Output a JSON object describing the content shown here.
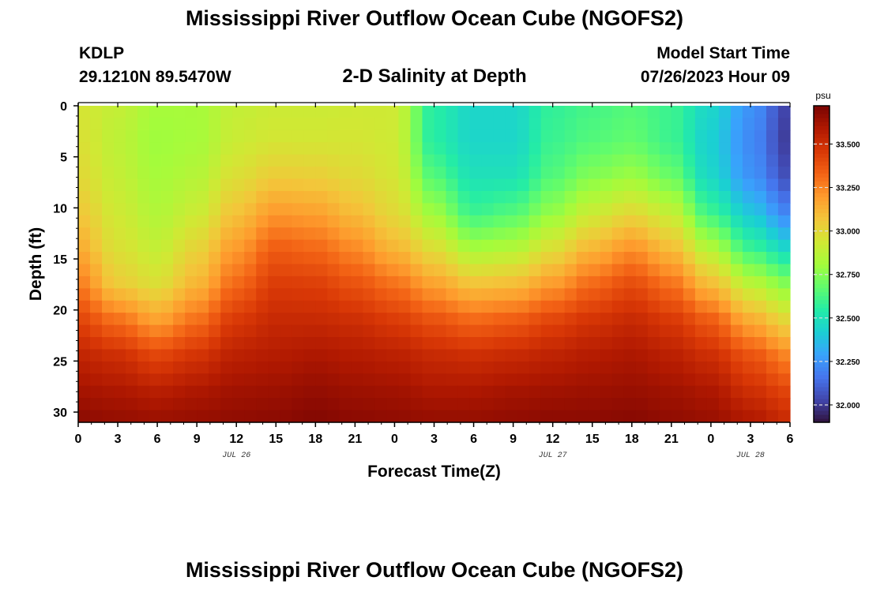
{
  "header": {
    "title": "Mississippi River Outflow Ocean Cube (NGOFS2)",
    "station_id": "KDLP",
    "station_coords": "29.1210N  89.5470W",
    "subtitle": "2-D Salinity at Depth",
    "model_start_label": "Model Start Time",
    "model_start_value": "07/26/2023 Hour 09"
  },
  "footer": {
    "title": "Mississippi River Outflow Ocean Cube (NGOFS2)"
  },
  "colors": {
    "background": "#ffffff",
    "text": "#000000",
    "colormap": [
      "#30123b",
      "#4145ab",
      "#4675ed",
      "#39a2fc",
      "#1bcfd4",
      "#24eca6",
      "#61fc6c",
      "#a4fc3b",
      "#d1e834",
      "#f3c63a",
      "#fe9b2d",
      "#f36315",
      "#d93806",
      "#b11901",
      "#7a0402"
    ]
  },
  "chart_data": {
    "type": "heatmap",
    "title": "2-D Salinity at Depth",
    "xlabel": "Forecast Time(Z)",
    "ylabel": "Depth (ft)",
    "x_ticks": [
      "0",
      "3",
      "6",
      "9",
      "12",
      "15",
      "18",
      "21",
      "0",
      "3",
      "6",
      "9",
      "12",
      "15",
      "18",
      "21",
      "0",
      "3",
      "6"
    ],
    "date_labels": [
      {
        "label": "JUL 26",
        "hours_from_start": 12
      },
      {
        "label": "JUL 27",
        "hours_from_start": 36
      },
      {
        "label": "JUL 28",
        "hours_from_start": 51
      }
    ],
    "xlim_hours": [
      0,
      54
    ],
    "y_ticks": [
      0,
      5,
      10,
      15,
      20,
      25,
      30
    ],
    "ylim": [
      0,
      31
    ],
    "colorbar": {
      "unit": "psu",
      "range": [
        31.9,
        33.72
      ],
      "ticks": [
        "33.500",
        "33.250",
        "33.000",
        "32.750",
        "32.500",
        "32.250",
        "32.000"
      ],
      "tick_values": [
        33.5,
        33.25,
        33.0,
        32.75,
        32.5,
        32.25,
        32.0
      ]
    },
    "profiles": [
      {
        "hour": 0,
        "values": [
          32.95,
          32.97,
          33.0,
          33.06,
          33.15,
          33.27,
          33.42,
          33.54,
          33.62,
          33.68
        ]
      },
      {
        "hour": 3,
        "values": [
          32.9,
          32.88,
          32.9,
          32.93,
          32.97,
          33.05,
          33.3,
          33.5,
          33.6,
          33.66
        ]
      },
      {
        "hour": 6,
        "values": [
          32.82,
          32.8,
          32.82,
          32.85,
          32.9,
          32.98,
          33.18,
          33.42,
          33.57,
          33.65
        ]
      },
      {
        "hour": 9,
        "values": [
          32.82,
          32.82,
          32.86,
          32.92,
          33.02,
          33.12,
          33.3,
          33.48,
          33.6,
          33.66
        ]
      },
      {
        "hour": 12,
        "values": [
          32.9,
          32.92,
          32.98,
          33.08,
          33.2,
          33.32,
          33.46,
          33.56,
          33.63,
          33.67
        ]
      },
      {
        "hour": 15,
        "values": [
          32.92,
          32.95,
          33.05,
          33.2,
          33.35,
          33.45,
          33.52,
          33.58,
          33.64,
          33.68
        ]
      },
      {
        "hour": 18,
        "values": [
          32.92,
          32.95,
          33.04,
          33.18,
          33.32,
          33.44,
          33.52,
          33.6,
          33.66,
          33.7
        ]
      },
      {
        "hour": 21,
        "values": [
          32.93,
          32.95,
          33.0,
          33.1,
          33.24,
          33.38,
          33.5,
          33.58,
          33.64,
          33.68
        ]
      },
      {
        "hour": 24,
        "values": [
          32.93,
          32.93,
          32.95,
          33.0,
          33.12,
          33.3,
          33.45,
          33.56,
          33.63,
          33.67
        ]
      },
      {
        "hour": 27,
        "values": [
          32.55,
          32.55,
          32.65,
          32.8,
          32.98,
          33.18,
          33.38,
          33.52,
          33.6,
          33.66
        ]
      },
      {
        "hour": 30,
        "values": [
          32.45,
          32.45,
          32.5,
          32.6,
          32.82,
          33.08,
          33.32,
          33.5,
          33.6,
          33.66
        ]
      },
      {
        "hour": 33,
        "values": [
          32.45,
          32.45,
          32.5,
          32.65,
          32.85,
          33.1,
          33.35,
          33.52,
          33.62,
          33.67
        ]
      },
      {
        "hour": 36,
        "values": [
          32.58,
          32.6,
          32.65,
          32.78,
          32.98,
          33.2,
          33.42,
          33.55,
          33.63,
          33.68
        ]
      },
      {
        "hour": 39,
        "values": [
          32.62,
          32.65,
          32.75,
          32.92,
          33.12,
          33.32,
          33.48,
          33.58,
          33.64,
          33.68
        ]
      },
      {
        "hour": 42,
        "values": [
          32.65,
          32.68,
          32.8,
          33.0,
          33.22,
          33.4,
          33.52,
          33.6,
          33.65,
          33.69
        ]
      },
      {
        "hour": 45,
        "values": [
          32.6,
          32.6,
          32.7,
          32.9,
          33.1,
          33.3,
          33.46,
          33.56,
          33.63,
          33.67
        ]
      },
      {
        "hour": 48,
        "values": [
          32.45,
          32.42,
          32.45,
          32.6,
          32.85,
          33.1,
          33.35,
          33.5,
          33.6,
          33.65
        ]
      },
      {
        "hour": 51,
        "values": [
          32.25,
          32.22,
          32.25,
          32.4,
          32.6,
          32.88,
          33.15,
          33.38,
          33.5,
          33.6
        ]
      },
      {
        "hour": 54,
        "values": [
          32.02,
          32.0,
          32.05,
          32.2,
          32.45,
          32.75,
          33.0,
          33.25,
          33.42,
          33.52
        ]
      }
    ],
    "profile_depths_ft": [
      0,
      3.5,
      7,
      10.5,
      14,
      17.5,
      21,
      24.5,
      28,
      31
    ]
  }
}
